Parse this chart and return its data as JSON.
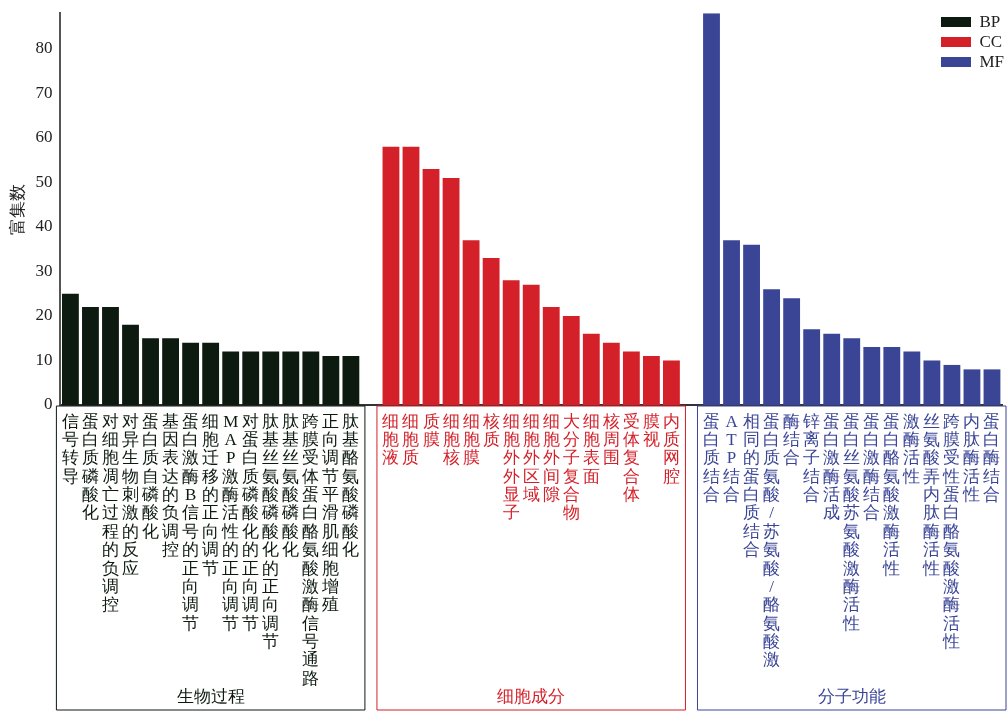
{
  "chart_data": {
    "type": "bar",
    "ylabel": "富集数",
    "ylim": [
      0,
      88
    ],
    "yticks": [
      0,
      10,
      20,
      30,
      40,
      50,
      60,
      70,
      80
    ],
    "grid": false,
    "legend": "top right",
    "categories": [
      "信号转导",
      "蛋白质磷酸化",
      "对细胞凋亡过程的负调控",
      "对异生物刺激的反应",
      "蛋白质自磷酸化",
      "基因表达的负调控",
      "蛋白激酶B信号的正向调节",
      "细胞迁移的正向调节",
      "MAP激酶活性的正向调节",
      "对蛋白质磷酸化的正向调节",
      "肽基丝氨酸磷酸化的正向调节",
      "肽基丝氨酸磷酸化",
      "跨膜受体蛋白酪氨酸激酶信号通路",
      "正向调节平滑肌细胞增殖",
      "肽基酪氨酸磷酸化",
      null,
      "细胞液",
      "细胞质",
      "质膜",
      "细胞核",
      "细胞膜",
      "核质",
      "细胞外外显子",
      "细胞外区域",
      "细胞外间隙",
      "大分子复合物",
      "细胞表面",
      "核周围",
      "受体复合体",
      "膜视",
      "内质网腔",
      null,
      "蛋白质结合",
      "ATP结合",
      "相同的蛋白质结合",
      "蛋白质氨酸/苏氨酸/酪氨酸激",
      "酶结合",
      "锌离子结合",
      "蛋白激酶活成",
      "蛋白丝氨酸苏氨酸激酶活性",
      "蛋白激酶结合",
      "蛋白酪氨酸激酶活性",
      "激酶活性",
      "丝氨酸弄内肽酶活性",
      "跨膜受性蛋白酪氨酸激酶活性",
      "内肽酶活性",
      "蛋白酶结合"
    ],
    "series": [
      {
        "name": "BP",
        "color": "#0d1a10",
        "values": [
          25,
          22,
          22,
          18,
          15,
          15,
          14,
          14,
          12,
          12,
          12,
          12,
          12,
          11,
          11,
          null,
          null,
          null,
          null,
          null,
          null,
          null,
          null,
          null,
          null,
          null,
          null,
          null,
          null,
          null,
          null,
          null,
          null,
          null,
          null,
          null,
          null,
          null,
          null,
          null,
          null,
          null,
          null,
          null,
          null,
          null,
          null
        ]
      },
      {
        "name": "CC",
        "color": "#d42029",
        "values": [
          null,
          null,
          null,
          null,
          null,
          null,
          null,
          null,
          null,
          null,
          null,
          null,
          null,
          null,
          null,
          null,
          58,
          58,
          53,
          51,
          37,
          33,
          28,
          27,
          22,
          20,
          16,
          14,
          12,
          11,
          10,
          null,
          null,
          null,
          null,
          null,
          null,
          null,
          null,
          null,
          null,
          null,
          null,
          null,
          null,
          null,
          null
        ]
      },
      {
        "name": "MF",
        "color": "#3a4596",
        "values": [
          null,
          null,
          null,
          null,
          null,
          null,
          null,
          null,
          null,
          null,
          null,
          null,
          null,
          null,
          null,
          null,
          null,
          null,
          null,
          null,
          null,
          null,
          null,
          null,
          null,
          null,
          null,
          null,
          null,
          null,
          null,
          null,
          88,
          37,
          36,
          26,
          24,
          17,
          16,
          15,
          13,
          13,
          12,
          10,
          9,
          8,
          8
        ]
      }
    ],
    "annotations": [
      "生物过程",
      "细胞成分",
      "分子功能"
    ]
  }
}
